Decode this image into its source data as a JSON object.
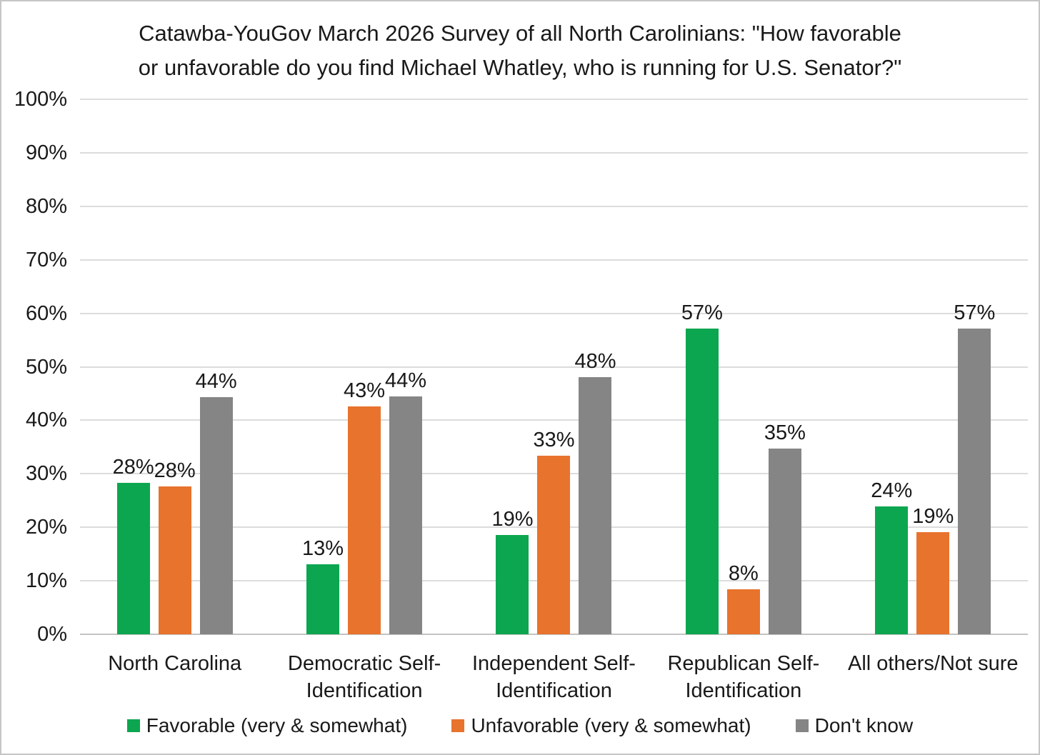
{
  "chart_data": {
    "type": "bar",
    "title": "Catawba-YouGov March 2026 Survey of all North Carolinians: \"How favorable or unfavorable do you find Michael Whatley, who is running for U.S. Senator?\"",
    "title_lines": [
      "Catawba-YouGov March 2026 Survey of all North Carolinians: \"How favorable",
      "or unfavorable do you find Michael Whatley, who is running for U.S. Senator?\""
    ],
    "categories": [
      "North Carolina",
      "Democratic Self-Identification",
      "Independent Self-Identification",
      "Republican Self-Identification",
      "All others/Not sure"
    ],
    "series": [
      {
        "name": "Favorable (very & somewhat)",
        "color": "#0da650",
        "values": [
          28.3,
          13.1,
          18.6,
          57.2,
          23.9
        ],
        "labels": [
          "28%",
          "13%",
          "19%",
          "57%",
          "24%"
        ]
      },
      {
        "name": "Unfavorable (very & somewhat)",
        "color": "#e8732d",
        "values": [
          27.7,
          42.6,
          33.4,
          8.4,
          19.1
        ],
        "labels": [
          "28%",
          "43%",
          "33%",
          "8%",
          "19%"
        ]
      },
      {
        "name": "Don't know",
        "color": "#858585",
        "values": [
          44.3,
          44.4,
          48.1,
          34.7,
          57.2
        ],
        "labels": [
          "44%",
          "44%",
          "48%",
          "35%",
          "57%"
        ]
      }
    ],
    "y_axis": {
      "min": 0,
      "max": 100,
      "step": 10,
      "tick_labels": [
        "0%",
        "10%",
        "20%",
        "30%",
        "40%",
        "50%",
        "60%",
        "70%",
        "80%",
        "90%",
        "100%"
      ]
    },
    "grid": true,
    "legend_position": "bottom",
    "background_color": "#ffffff",
    "gridline_color": "#dcdcdc"
  }
}
